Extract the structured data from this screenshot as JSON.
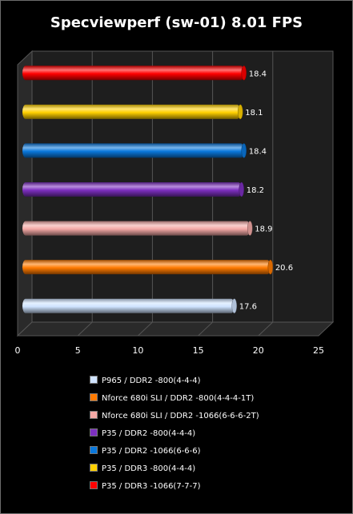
{
  "chart_data": {
    "type": "bar",
    "orientation": "horizontal",
    "title": "Specviewperf (sw-01) 8.01 FPS",
    "xlim": [
      0,
      25
    ],
    "xticks": [
      0,
      5,
      10,
      15,
      20,
      25
    ],
    "grid": true,
    "legend_placement": "bottom",
    "series": [
      {
        "name": "P965 / DDR2 -800(4-4-4)",
        "value": 17.6,
        "label": "17.6",
        "color": "#cfe3ff"
      },
      {
        "name": "Nforce 680i SLI / DDR2 -800(4-4-4-1T)",
        "value": 20.6,
        "label": "20.6",
        "color": "#ff7a00"
      },
      {
        "name": "Nforce 680i SLI / DDR2 -1066(6-6-6-2T)",
        "value": 18.9,
        "label": "18.9",
        "color": "#f4a9a6"
      },
      {
        "name": "P35 / DDR2 -800(4-4-4)",
        "value": 18.2,
        "label": "18.2",
        "color": "#7d2fc0"
      },
      {
        "name": "P35 / DDR2 -1066(6-6-6)",
        "value": 18.4,
        "label": "18.4",
        "color": "#0a78dc"
      },
      {
        "name": "P35 / DDR3 -800(4-4-4)",
        "value": 18.1,
        "label": "18.1",
        "color": "#ffd000"
      },
      {
        "name": "P35 / DDR3 -1066(7-7-7)",
        "value": 18.4,
        "label": "18.4",
        "color": "#ff0000"
      }
    ]
  }
}
